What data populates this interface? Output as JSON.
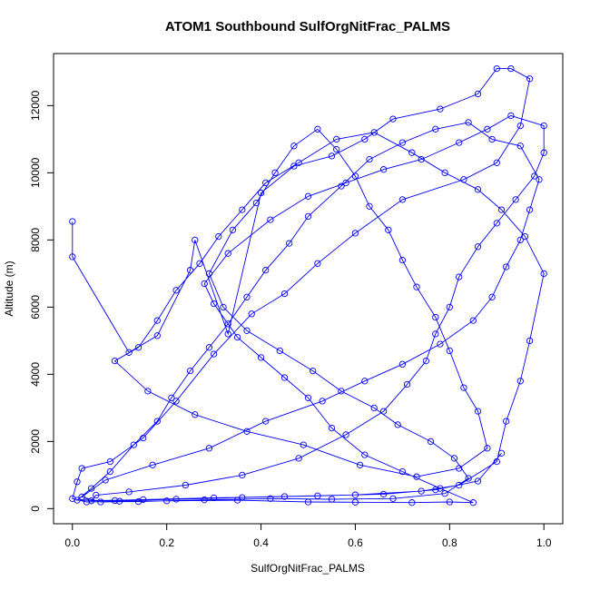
{
  "chart_data": {
    "type": "line",
    "markers": "open-circle",
    "title": "ATOM1 Southbound SulfOrgNitFrac_PALMS",
    "xlabel": "SulfOrgNitFrac_PALMS",
    "ylabel": "Altitude (m)",
    "xlim": [
      -0.04,
      1.04
    ],
    "ylim": [
      -450,
      13550
    ],
    "x_ticks": [
      0.0,
      0.2,
      0.4,
      0.6,
      0.8,
      1.0
    ],
    "x_tick_labels": [
      "0.0",
      "0.2",
      "0.4",
      "0.6",
      "0.8",
      "1.0"
    ],
    "y_ticks": [
      0,
      2000,
      4000,
      6000,
      8000,
      10000,
      12000
    ],
    "y_tick_labels": [
      "0",
      "2000",
      "4000",
      "6000",
      "8000",
      "10000",
      "12000"
    ],
    "grid": false,
    "legend": "none",
    "color": "#0000ff",
    "series": [
      {
        "points": [
          [
            0.0,
            8550
          ],
          [
            0.0,
            7500
          ],
          [
            0.12,
            4650
          ],
          [
            0.18,
            5150
          ],
          [
            0.25,
            7100
          ],
          [
            0.26,
            8000
          ],
          [
            0.33,
            5200
          ],
          [
            0.4,
            9400
          ],
          [
            0.47,
            10200
          ],
          [
            0.55,
            10500
          ],
          [
            0.62,
            11000
          ],
          [
            0.68,
            11600
          ],
          [
            0.78,
            11900
          ],
          [
            0.86,
            12350
          ],
          [
            0.9,
            13100
          ],
          [
            0.93,
            13100
          ],
          [
            0.97,
            12800
          ],
          [
            0.95,
            11400
          ],
          [
            0.9,
            10300
          ],
          [
            0.83,
            9800
          ],
          [
            0.7,
            9200
          ],
          [
            0.6,
            8200
          ],
          [
            0.52,
            7300
          ],
          [
            0.45,
            6400
          ],
          [
            0.38,
            5800
          ],
          [
            0.3,
            4600
          ],
          [
            0.22,
            3200
          ],
          [
            0.15,
            2100
          ],
          [
            0.08,
            1400
          ],
          [
            0.02,
            1200
          ],
          [
            0.01,
            800
          ],
          [
            0.0,
            300
          ],
          [
            0.03,
            200
          ],
          [
            0.1,
            220
          ],
          [
            0.2,
            230
          ],
          [
            0.35,
            250
          ],
          [
            0.5,
            200
          ],
          [
            0.6,
            190
          ],
          [
            0.72,
            180
          ],
          [
            0.8,
            200
          ],
          [
            0.85,
            180
          ],
          [
            0.78,
            600
          ],
          [
            0.7,
            1100
          ],
          [
            0.62,
            1600
          ],
          [
            0.55,
            2400
          ],
          [
            0.5,
            3300
          ],
          [
            0.45,
            3900
          ],
          [
            0.4,
            4500
          ],
          [
            0.35,
            5100
          ],
          [
            0.3,
            6100
          ],
          [
            0.28,
            6700
          ],
          [
            0.33,
            7600
          ],
          [
            0.42,
            8600
          ],
          [
            0.5,
            9300
          ],
          [
            0.58,
            9700
          ],
          [
            0.66,
            10100
          ],
          [
            0.74,
            10400
          ],
          [
            0.82,
            10900
          ],
          [
            0.88,
            11300
          ],
          [
            0.93,
            11700
          ],
          [
            1.0,
            11400
          ],
          [
            1.0,
            10600
          ],
          [
            0.98,
            9900
          ],
          [
            0.94,
            9200
          ],
          [
            0.9,
            8500
          ],
          [
            0.86,
            7800
          ],
          [
            0.82,
            6900
          ],
          [
            0.8,
            6000
          ],
          [
            0.77,
            5200
          ],
          [
            0.75,
            4400
          ],
          [
            0.71,
            3700
          ],
          [
            0.66,
            2900
          ],
          [
            0.58,
            2200
          ],
          [
            0.48,
            1500
          ],
          [
            0.36,
            1000
          ],
          [
            0.24,
            700
          ],
          [
            0.12,
            500
          ],
          [
            0.05,
            400
          ],
          [
            0.04,
            230
          ],
          [
            0.15,
            270
          ],
          [
            0.3,
            320
          ],
          [
            0.45,
            360
          ],
          [
            0.6,
            410
          ],
          [
            0.74,
            520
          ],
          [
            0.82,
            700
          ],
          [
            0.9,
            1400
          ],
          [
            0.92,
            2600
          ],
          [
            0.95,
            3800
          ],
          [
            0.97,
            5000
          ],
          [
            1.0,
            7000
          ],
          [
            0.96,
            8100
          ],
          [
            0.91,
            8900
          ],
          [
            0.86,
            9500
          ],
          [
            0.79,
            10000
          ],
          [
            0.72,
            10600
          ],
          [
            0.64,
            11200
          ],
          [
            0.56,
            11000
          ],
          [
            0.48,
            10300
          ],
          [
            0.41,
            9700
          ],
          [
            0.36,
            8900
          ],
          [
            0.31,
            8100
          ],
          [
            0.27,
            7300
          ],
          [
            0.22,
            6500
          ],
          [
            0.18,
            5600
          ],
          [
            0.14,
            4800
          ],
          [
            0.09,
            4400
          ],
          [
            0.16,
            3500
          ],
          [
            0.26,
            2800
          ],
          [
            0.37,
            2300
          ],
          [
            0.49,
            1900
          ],
          [
            0.61,
            1300
          ],
          [
            0.73,
            950
          ],
          [
            0.82,
            1200
          ],
          [
            0.88,
            1800
          ],
          [
            0.86,
            2900
          ],
          [
            0.83,
            3600
          ],
          [
            0.8,
            4700
          ],
          [
            0.77,
            5700
          ],
          [
            0.73,
            6600
          ],
          [
            0.7,
            7400
          ],
          [
            0.67,
            8300
          ],
          [
            0.63,
            9000
          ],
          [
            0.6,
            9900
          ],
          [
            0.56,
            10700
          ],
          [
            0.52,
            11300
          ],
          [
            0.47,
            10800
          ],
          [
            0.43,
            10000
          ],
          [
            0.39,
            9100
          ],
          [
            0.34,
            8300
          ],
          [
            0.29,
            7000
          ],
          [
            0.32,
            6000
          ],
          [
            0.37,
            5300
          ],
          [
            0.44,
            4700
          ],
          [
            0.51,
            4100
          ],
          [
            0.57,
            3500
          ],
          [
            0.64,
            3000
          ],
          [
            0.69,
            2500
          ],
          [
            0.76,
            2000
          ],
          [
            0.81,
            1500
          ],
          [
            0.84,
            900
          ],
          [
            0.79,
            450
          ],
          [
            0.68,
            300
          ],
          [
            0.55,
            280
          ],
          [
            0.42,
            300
          ],
          [
            0.28,
            260
          ],
          [
            0.14,
            210
          ],
          [
            0.06,
            200
          ],
          [
            0.02,
            350
          ],
          [
            0.07,
            850
          ],
          [
            0.17,
            1300
          ],
          [
            0.29,
            1800
          ],
          [
            0.41,
            2600
          ],
          [
            0.53,
            3200
          ],
          [
            0.62,
            3800
          ],
          [
            0.7,
            4300
          ],
          [
            0.78,
            4900
          ],
          [
            0.85,
            5600
          ],
          [
            0.89,
            6300
          ],
          [
            0.92,
            7200
          ],
          [
            0.95,
            8000
          ],
          [
            0.97,
            8900
          ],
          [
            0.99,
            9800
          ],
          [
            0.95,
            10800
          ],
          [
            0.89,
            11000
          ],
          [
            0.84,
            11500
          ],
          [
            0.77,
            11300
          ],
          [
            0.7,
            10900
          ],
          [
            0.63,
            10400
          ],
          [
            0.57,
            9600
          ],
          [
            0.5,
            8700
          ],
          [
            0.46,
            7900
          ],
          [
            0.41,
            7100
          ],
          [
            0.37,
            6300
          ],
          [
            0.33,
            5500
          ],
          [
            0.29,
            4800
          ],
          [
            0.25,
            4100
          ],
          [
            0.21,
            3300
          ],
          [
            0.18,
            2600
          ],
          [
            0.13,
            1900
          ],
          [
            0.08,
            1100
          ],
          [
            0.04,
            600
          ],
          [
            0.01,
            250
          ],
          [
            0.09,
            240
          ],
          [
            0.22,
            280
          ],
          [
            0.36,
            330
          ],
          [
            0.52,
            380
          ],
          [
            0.66,
            430
          ],
          [
            0.77,
            560
          ],
          [
            0.86,
            820
          ],
          [
            0.91,
            1650
          ]
        ]
      }
    ]
  }
}
